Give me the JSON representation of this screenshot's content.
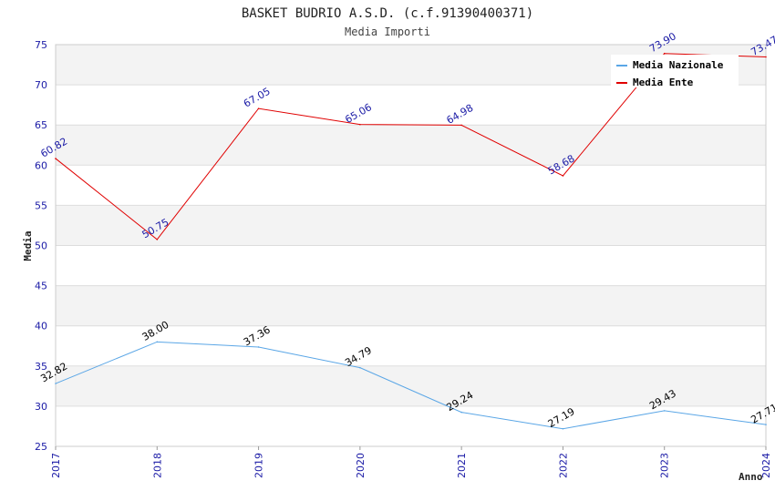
{
  "chart_data": {
    "type": "line",
    "title": "BASKET BUDRIO A.S.D. (c.f.91390400371)",
    "subtitle": "Media Importi",
    "xlabel": "Anno",
    "ylabel": "Media",
    "categories": [
      "2017",
      "2018",
      "2019",
      "2020",
      "2021",
      "2022",
      "2023",
      "2024"
    ],
    "ylim": [
      25,
      75
    ],
    "yticks": [
      25,
      30,
      35,
      40,
      45,
      50,
      55,
      60,
      65,
      70,
      75
    ],
    "series": [
      {
        "name": "Media Nazionale",
        "color": "#5aa6e6",
        "label_color": "#000000",
        "values": [
          32.82,
          38.0,
          37.36,
          34.79,
          29.24,
          27.19,
          29.43,
          27.71
        ],
        "labels": [
          "32.82",
          "38.00",
          "37.36",
          "34.79",
          "29.24",
          "27.19",
          "29.43",
          "27.71"
        ]
      },
      {
        "name": "Media Ente",
        "color": "#e00000",
        "label_color": "#1a1aa6",
        "values": [
          60.82,
          50.75,
          67.05,
          65.06,
          64.98,
          58.68,
          73.9,
          73.47
        ],
        "labels": [
          "60.82",
          "50.75",
          "67.05",
          "65.06",
          "64.98",
          "58.68",
          "73.90",
          "73.47"
        ]
      }
    ],
    "grid": true,
    "legend": "top-right"
  }
}
